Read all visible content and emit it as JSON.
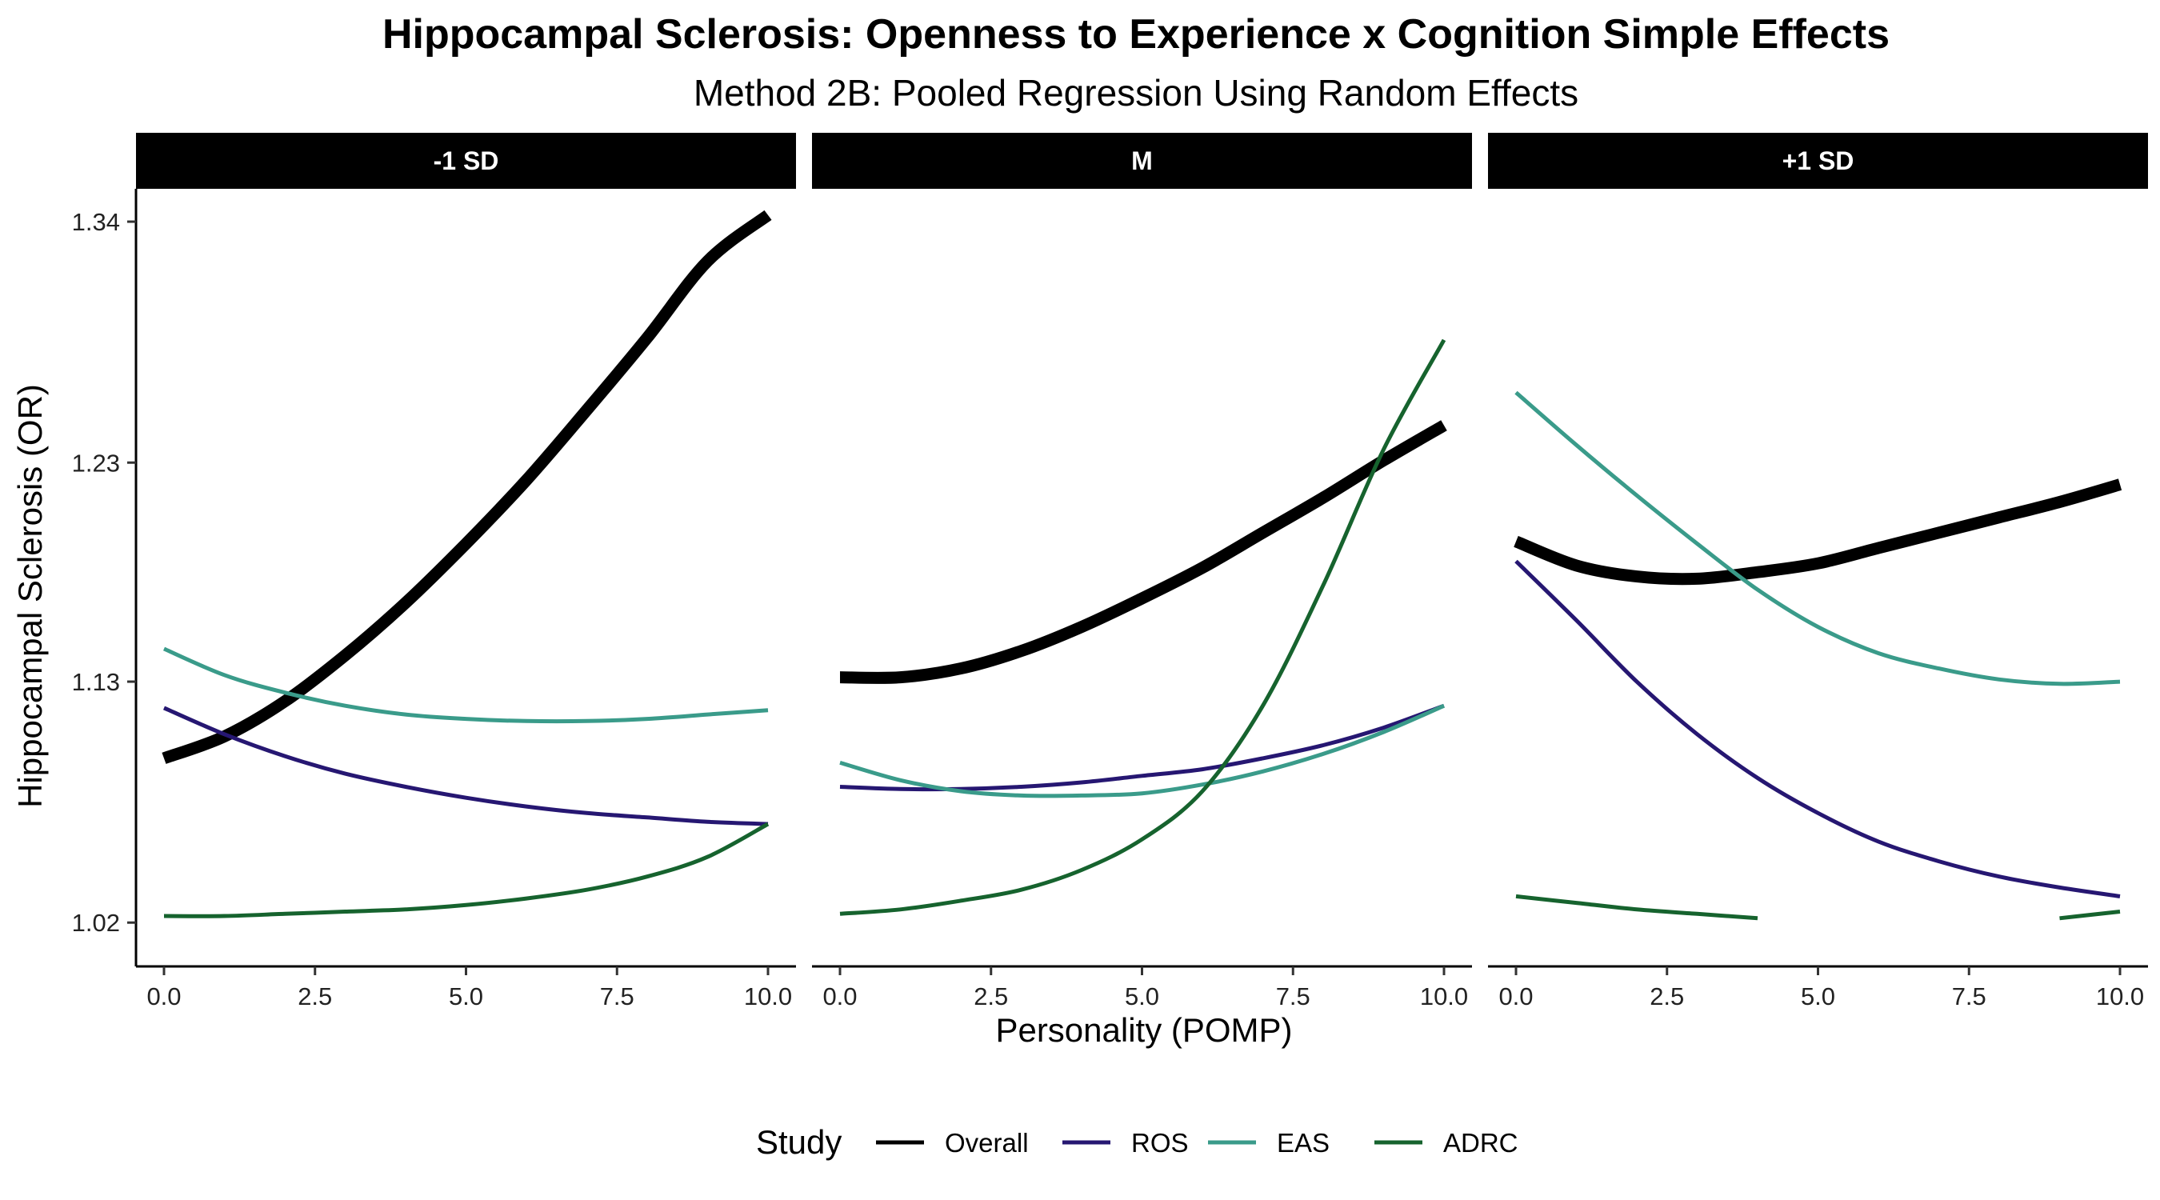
{
  "chart_data": {
    "type": "line",
    "title": "Hippocampal Sclerosis: Openness to Experience x Cognition Simple Effects",
    "subtitle": "Method 2B: Pooled Regression Using Random Effects",
    "xlabel": "Personality (POMP)",
    "ylabel": "Hippocampal Sclerosis (OR)",
    "xlim": [
      0,
      10
    ],
    "ylim": [
      1.0,
      1.355
    ],
    "x_ticks": [
      "0.0",
      "2.5",
      "5.0",
      "7.5",
      "10.0"
    ],
    "y_ticks": [
      "1.02",
      "1.13",
      "1.23",
      "1.34"
    ],
    "legend": {
      "title": "Study",
      "position": "bottom",
      "items": [
        {
          "name": "Overall",
          "color": "#000000"
        },
        {
          "name": "ROS",
          "color": "#261772"
        },
        {
          "name": "EAS",
          "color": "#3a9b8a"
        },
        {
          "name": "ADRC",
          "color": "#16632e"
        }
      ]
    },
    "x": [
      0,
      1,
      2,
      3,
      4,
      5,
      6,
      7,
      8,
      9,
      10
    ],
    "panels": [
      {
        "label": "-1 SD",
        "series": [
          {
            "name": "Overall",
            "values": [
              1.095,
              1.105,
              1.121,
              1.142,
              1.166,
              1.193,
              1.222,
              1.254,
              1.287,
              1.322,
              1.343
            ]
          },
          {
            "name": "ROS",
            "values": [
              1.118,
              1.106,
              1.096,
              1.088,
              1.082,
              1.077,
              1.073,
              1.07,
              1.068,
              1.066,
              1.065
            ]
          },
          {
            "name": "EAS",
            "values": [
              1.145,
              1.133,
              1.125,
              1.119,
              1.115,
              1.113,
              1.112,
              1.112,
              1.113,
              1.115,
              1.117
            ]
          },
          {
            "name": "ADRC",
            "values": [
              1.023,
              1.023,
              1.024,
              1.025,
              1.026,
              1.028,
              1.031,
              1.035,
              1.041,
              1.05,
              1.065
            ]
          }
        ]
      },
      {
        "label": "M",
        "series": [
          {
            "name": "Overall",
            "values": [
              1.132,
              1.132,
              1.136,
              1.144,
              1.155,
              1.168,
              1.182,
              1.198,
              1.214,
              1.231,
              1.247
            ]
          },
          {
            "name": "ROS",
            "values": [
              1.082,
              1.081,
              1.081,
              1.082,
              1.084,
              1.087,
              1.09,
              1.095,
              1.101,
              1.109,
              1.119
            ]
          },
          {
            "name": "EAS",
            "values": [
              1.093,
              1.085,
              1.08,
              1.078,
              1.078,
              1.079,
              1.083,
              1.089,
              1.097,
              1.107,
              1.119
            ]
          },
          {
            "name": "ADRC",
            "values": [
              1.024,
              1.026,
              1.03,
              1.035,
              1.044,
              1.058,
              1.08,
              1.119,
              1.174,
              1.236,
              1.286
            ]
          }
        ]
      },
      {
        "label": "+1 SD",
        "series": [
          {
            "name": "Overall",
            "values": [
              1.194,
              1.183,
              1.178,
              1.177,
              1.18,
              1.184,
              1.191,
              1.198,
              1.205,
              1.212,
              1.22
            ]
          },
          {
            "name": "ROS",
            "values": [
              1.185,
              1.158,
              1.13,
              1.106,
              1.086,
              1.07,
              1.057,
              1.048,
              1.041,
              1.036,
              1.032
            ]
          },
          {
            "name": "EAS",
            "values": [
              1.262,
              1.238,
              1.215,
              1.193,
              1.172,
              1.155,
              1.143,
              1.136,
              1.131,
              1.129,
              1.13
            ]
          },
          {
            "name": "ADRC",
            "values": [
              1.032,
              1.029,
              1.026,
              1.024,
              1.022,
              null,
              null,
              null,
              null,
              1.022,
              1.025
            ]
          }
        ]
      }
    ]
  }
}
